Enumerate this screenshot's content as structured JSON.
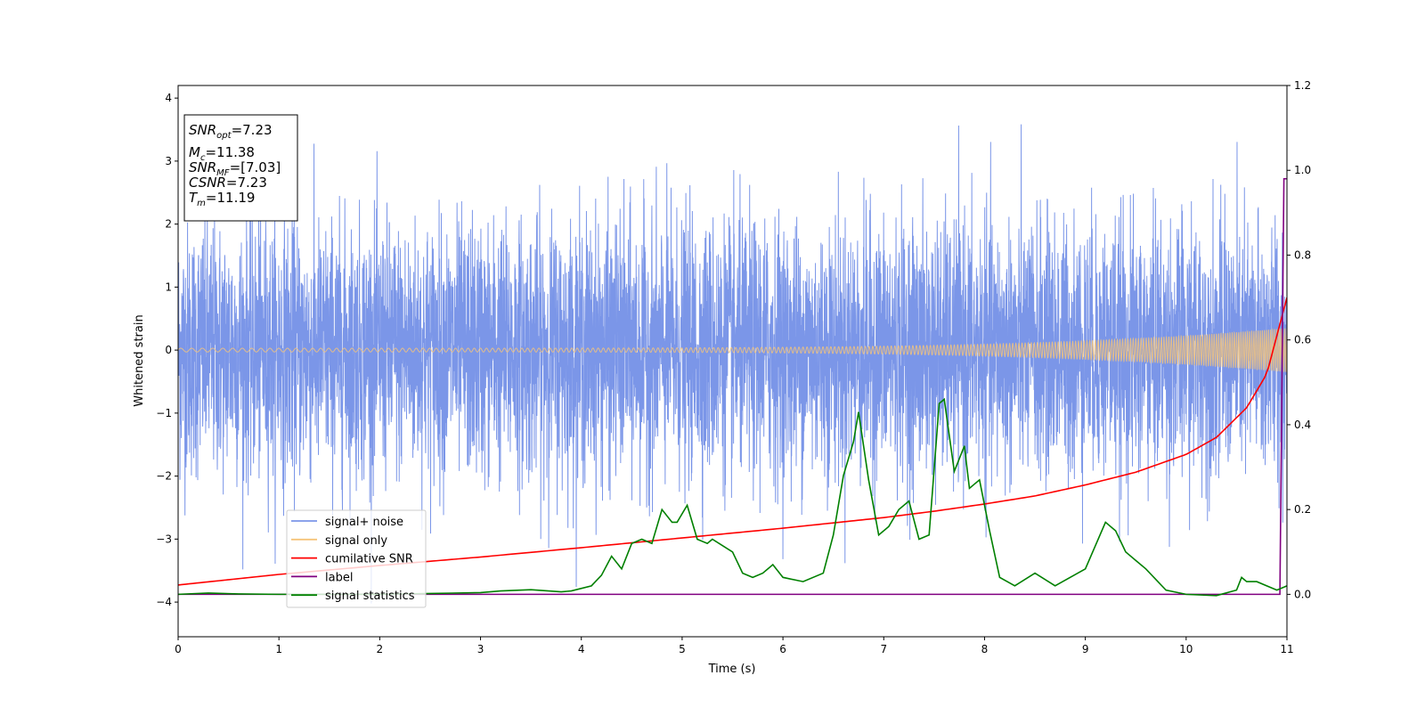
{
  "chart_data": {
    "type": "line",
    "title": "",
    "xlabel": "Time (s)",
    "ylabel": "Whitened strain",
    "y2label": "",
    "xlim": [
      0,
      11
    ],
    "ylim": [
      -4.55,
      4.2
    ],
    "y2lim": [
      -0.1,
      1.2
    ],
    "xticks": [
      "0",
      "1",
      "2",
      "3",
      "4",
      "5",
      "6",
      "7",
      "8",
      "9",
      "10",
      "11"
    ],
    "yticks": [
      "4",
      "3",
      "2",
      "1",
      "0",
      "−1",
      "−2",
      "−3",
      "−4"
    ],
    "y2ticks": [
      "1.2",
      "1.0",
      "0.8",
      "0.6",
      "0.4",
      "0.2",
      "0.0"
    ],
    "grid": false,
    "legend_position": "lower-left",
    "series": [
      {
        "name": "signal+ noise",
        "axis": "left",
        "color": "#7b96e8",
        "kind": "noise",
        "std": 1.0,
        "x_range": [
          0,
          11
        ],
        "y_range": [
          -4.17,
          3.8
        ]
      },
      {
        "name": "signal only",
        "axis": "left",
        "color": "#f5c47a",
        "kind": "chirp",
        "amplitude_start": 0.03,
        "amplitude_end": 0.35
      },
      {
        "name": "cumilative SNR",
        "axis": "right",
        "color": "#ff0000",
        "x": [
          0,
          1,
          2,
          3,
          4,
          5,
          6,
          7,
          7.5,
          8,
          8.5,
          9,
          9.5,
          10,
          10.3,
          10.6,
          10.8,
          11
        ],
        "y": [
          0.022,
          0.047,
          0.068,
          0.088,
          0.11,
          0.133,
          0.156,
          0.181,
          0.196,
          0.213,
          0.232,
          0.258,
          0.288,
          0.33,
          0.37,
          0.44,
          0.52,
          0.7
        ]
      },
      {
        "name": "label",
        "axis": "right",
        "color": "#800080",
        "x": [
          0,
          10.93,
          10.97,
          11
        ],
        "y": [
          0.0,
          0.0,
          0.98,
          0.98
        ]
      },
      {
        "name": "signal statistics",
        "axis": "right",
        "color": "#008000",
        "x": [
          0,
          0.3,
          0.6,
          1,
          1.5,
          2,
          2.5,
          3,
          3.2,
          3.5,
          3.8,
          3.9,
          4.1,
          4.2,
          4.3,
          4.4,
          4.5,
          4.6,
          4.7,
          4.8,
          4.9,
          4.95,
          5.05,
          5.15,
          5.25,
          5.3,
          5.5,
          5.6,
          5.7,
          5.8,
          5.9,
          6.0,
          6.2,
          6.4,
          6.5,
          6.6,
          6.7,
          6.75,
          6.85,
          6.95,
          7.05,
          7.15,
          7.25,
          7.35,
          7.45,
          7.55,
          7.6,
          7.7,
          7.8,
          7.85,
          7.95,
          8.05,
          8.15,
          8.3,
          8.5,
          8.7,
          9.0,
          9.2,
          9.3,
          9.4,
          9.6,
          9.8,
          10,
          10.3,
          10.5,
          10.55,
          10.6,
          10.7,
          10.8,
          10.9,
          11
        ],
        "y": [
          0.0,
          0.003,
          0.001,
          0.0,
          0.0,
          0.0,
          0.002,
          0.004,
          0.008,
          0.011,
          0.006,
          0.008,
          0.02,
          0.045,
          0.09,
          0.06,
          0.12,
          0.13,
          0.12,
          0.2,
          0.17,
          0.17,
          0.21,
          0.13,
          0.12,
          0.13,
          0.1,
          0.05,
          0.04,
          0.05,
          0.07,
          0.04,
          0.03,
          0.05,
          0.14,
          0.28,
          0.36,
          0.43,
          0.27,
          0.14,
          0.16,
          0.2,
          0.22,
          0.13,
          0.14,
          0.45,
          0.46,
          0.29,
          0.35,
          0.25,
          0.27,
          0.15,
          0.04,
          0.02,
          0.05,
          0.02,
          0.06,
          0.17,
          0.15,
          0.1,
          0.06,
          0.01,
          0.0,
          -0.003,
          0.01,
          0.04,
          0.03,
          0.03,
          0.02,
          0.01,
          0.02
        ]
      }
    ],
    "annotation_lines": [
      {
        "var": "SNR",
        "sub": "opt",
        "value": "=7.23"
      },
      {
        "var": "M",
        "sub": "c",
        "value": "=11.38"
      },
      {
        "var": "SNR",
        "sub": "MF",
        "value": "=[7.03]"
      },
      {
        "var": "CSNR",
        "sub": "",
        "value": "=7.23"
      },
      {
        "var": "T",
        "sub": "m",
        "value": "=11.19"
      }
    ]
  }
}
